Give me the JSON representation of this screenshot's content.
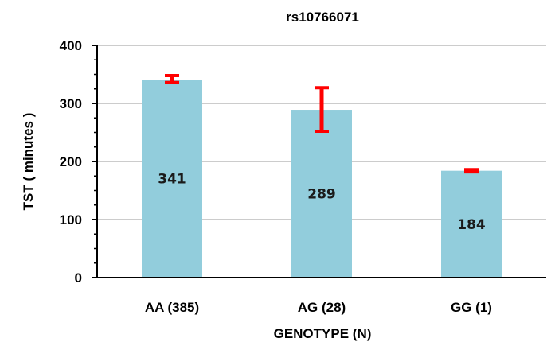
{
  "chart_data": {
    "type": "bar",
    "title": "rs10766071",
    "xlabel": "GENOTYPE (N)",
    "ylabel": "TST  ( minutes )",
    "categories": [
      "AA (385)",
      "AG (28)",
      "GG (1)"
    ],
    "values": [
      341,
      289,
      184
    ],
    "data_labels": [
      "341",
      "289",
      "184"
    ],
    "error_low": [
      336,
      252,
      182
    ],
    "error_high": [
      348,
      327,
      186
    ],
    "ylim": [
      0,
      400
    ],
    "yticks": [
      0,
      100,
      200,
      300,
      400
    ],
    "ytick_labels": [
      "0",
      "100",
      "200",
      "300",
      "400"
    ],
    "grid": true,
    "legend": "none",
    "colors": {
      "bar": "#92cddc",
      "error": "#ff0000",
      "grid": "#999999",
      "axis": "#000000"
    }
  }
}
